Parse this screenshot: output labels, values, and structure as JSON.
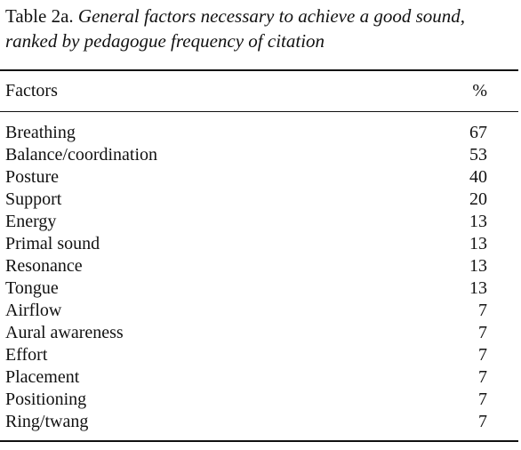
{
  "caption": {
    "label": "Table 2a.",
    "text": "General factors necessary to achieve a good sound, ranked by pedagogue frequency of citation"
  },
  "table": {
    "header": [
      "Factors",
      "%"
    ],
    "rows": [
      [
        "Breathing",
        67
      ],
      [
        "Balance/coordination",
        53
      ],
      [
        "Posture",
        40
      ],
      [
        "Support",
        20
      ],
      [
        "Energy",
        13
      ],
      [
        "Primal sound",
        13
      ],
      [
        "Resonance",
        13
      ],
      [
        "Tongue",
        13
      ],
      [
        "Airflow",
        7
      ],
      [
        "Aural awareness",
        7
      ],
      [
        "Effort",
        7
      ],
      [
        "Placement",
        7
      ],
      [
        "Positioning",
        7
      ],
      [
        "Ring/twang",
        7
      ]
    ]
  }
}
